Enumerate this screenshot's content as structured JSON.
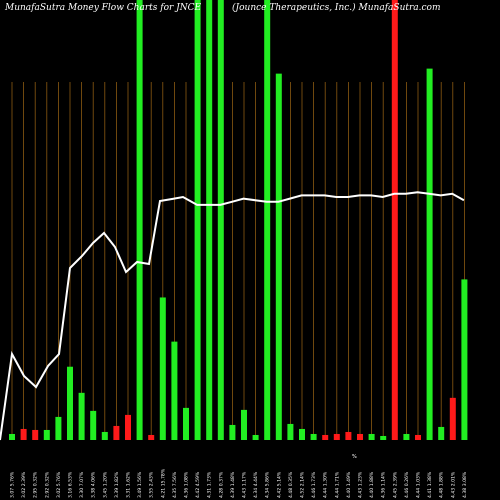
{
  "header": {
    "left_title": "MunafaSutra  Money Flow  Charts for JNCE",
    "right_title": "(Jounce    Therapeutics,   Inc.) MunafaSutra.com"
  },
  "chart_data": {
    "type": "bar",
    "title": "MunafaSutra  Money Flow  Charts for JNCE",
    "subtitle": "(Jounce    Therapeutics,   Inc.) MunafaSutra.com",
    "xlabel": "",
    "ylabel": "",
    "grid": true,
    "colors": {
      "up": "#22ee22",
      "down": "#ff1a1a",
      "line": "#ffffff",
      "grid": "#8b5a12",
      "background": "#000000"
    },
    "categories": [
      "3.07 5.76%",
      "3.02 2.39%",
      "2.95 0.32%",
      "2.92 0.32%",
      "3.02 5.76%",
      "3.16 6.53%",
      "3.30 7.07%",
      "3.38 4.06%",
      "3.45 1.20%",
      "3.39 1.82%",
      "3.31 1.62%",
      "3.49 1.56%",
      "3.55 2.43%",
      "4.21 15.78%",
      "4.35 7.56%",
      "4.36 1.08%",
      "4.42 4.59%",
      "4.31 1.73%",
      "4.28 0.37%",
      "4.39 1.48%",
      "4.43 1.17%",
      "4.34 4.44%",
      "4.34 5.86%",
      "4.42 5.14%",
      "4.48 0.35%",
      "4.52 2.14%",
      "4.46 1.73%",
      "4.44 1.30%",
      "4.44 1.71%",
      "4.40 1.49%",
      "4.43 1.23%",
      "4.40 1.88%",
      "4.36 1.14%",
      "4.45 2.39%",
      "4.46 0.26%",
      "4.44 1.03%",
      "4.41 1.38%",
      "4.48 1.88%",
      "4.43 2.01%",
      "4.38 3.08%"
    ],
    "bar_colors": [
      "green",
      "red",
      "red",
      "green",
      "green",
      "green",
      "green",
      "green",
      "green",
      "red",
      "red",
      "green",
      "red",
      "green",
      "green",
      "green",
      "green",
      "green",
      "green",
      "green",
      "green",
      "green",
      "green",
      "green",
      "green",
      "green",
      "green",
      "red",
      "red",
      "red",
      "red",
      "green",
      "green",
      "red",
      "green",
      "red",
      "green",
      "green",
      "red",
      "green"
    ],
    "bar_values": [
      6,
      11,
      10,
      10,
      23,
      73,
      47,
      29,
      8,
      14,
      25,
      460,
      5,
      142,
      98,
      32,
      530,
      500,
      530,
      15,
      30,
      5,
      600,
      365,
      16,
      11,
      6,
      5,
      6,
      8,
      6,
      6,
      4,
      600,
      6,
      5,
      370,
      13,
      42,
      160
    ],
    "bar_value_max": 320,
    "line_values": [
      3.07,
      3.02,
      2.99,
      3.04,
      3.06,
      3.41,
      3.45,
      3.47,
      3.49,
      3.46,
      3.42,
      3.43,
      3.42,
      3.63,
      3.635,
      3.64,
      3.64,
      3.64,
      3.64,
      3.65,
      3.66,
      3.655,
      3.65,
      3.65,
      3.66,
      3.67,
      3.67,
      3.67,
      3.665,
      3.665,
      3.67,
      3.67,
      3.665,
      3.675,
      3.675,
      3.68,
      3.675,
      3.67,
      3.675,
      3.655
    ],
    "line_range": [
      2.9,
      3.75
    ],
    "right_label": "%"
  }
}
